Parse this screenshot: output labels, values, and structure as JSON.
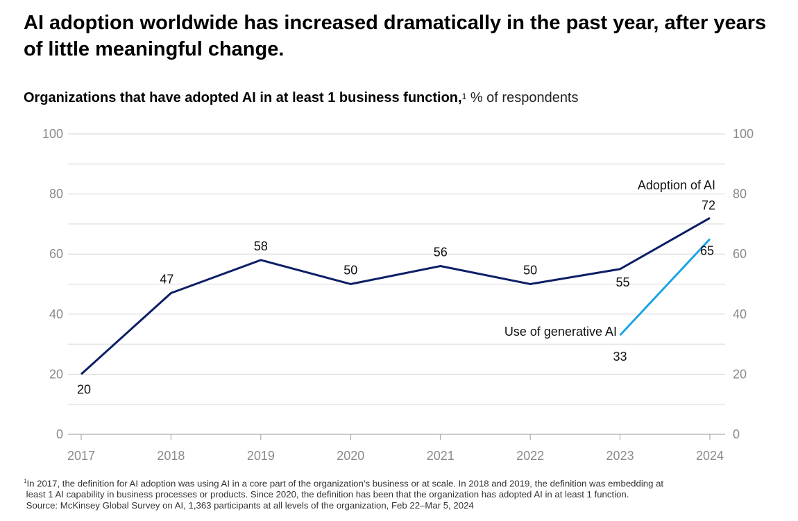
{
  "title": "AI adoption worldwide has increased dramatically in the past year, after years of little meaningful change.",
  "subtitle": {
    "main": "Organizations that have adopted AI in at least 1 business function,",
    "footnote_marker": "1",
    "unit": " % of respondents"
  },
  "chart_data": {
    "type": "line",
    "x": [
      "2017",
      "2018",
      "2019",
      "2020",
      "2021",
      "2022",
      "2023",
      "2024"
    ],
    "ylim": [
      0,
      100
    ],
    "yticks": [
      "0",
      "20",
      "40",
      "60",
      "80",
      "100"
    ],
    "grid": true,
    "series": [
      {
        "name": "Adoption of AI",
        "x": [
          "2017",
          "2018",
          "2019",
          "2020",
          "2021",
          "2022",
          "2023",
          "2024"
        ],
        "values": [
          20,
          47,
          58,
          50,
          56,
          50,
          55,
          72
        ],
        "labels": [
          "20",
          "47",
          "58",
          "50",
          "56",
          "50",
          "55",
          "72"
        ],
        "color": "#0d1f66"
      },
      {
        "name": "Use of generative AI",
        "x": [
          "2023",
          "2024"
        ],
        "values": [
          33,
          65
        ],
        "labels": [
          "33",
          "65"
        ],
        "color": "#1ba4e6"
      }
    ]
  },
  "footnotes": {
    "marker": "1",
    "line1": "In 2017, the definition for AI adoption was using AI in a core part of the organization’s business or at scale. In 2018 and 2019, the definition was embedding at",
    "line2": "least 1 AI capability in business processes or products. Since 2020, the definition has been that the organization has adopted AI in at least 1 function.",
    "source": "Source: McKinsey Global Survey on AI, 1,363 participants at all levels of the organization, Feb 22–Mar 5, 2024"
  }
}
